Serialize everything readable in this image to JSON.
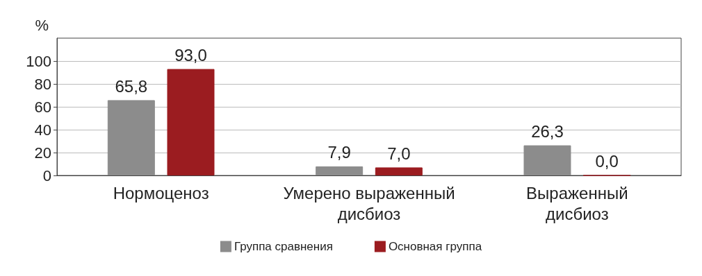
{
  "chart_data": {
    "type": "bar",
    "ylabel": "%",
    "categories": [
      "Нормоценоз",
      "Умерено выраженный дисбиоз",
      "Выраженный дисбиоз"
    ],
    "series": [
      {
        "name": "Группа сравнения",
        "color": "#8c8c8c",
        "values": [
          65.8,
          7.9,
          26.3
        ],
        "value_labels": [
          "65,8",
          "7,9",
          "26,3"
        ]
      },
      {
        "name": "Основная группа",
        "color": "#9b1c20",
        "values": [
          93.0,
          7.0,
          0.0
        ],
        "value_labels": [
          "93,0",
          "7,0",
          "0,0"
        ]
      }
    ],
    "ylim": [
      0,
      120
    ],
    "yticks": [
      0,
      20,
      40,
      60,
      80,
      100
    ],
    "grid": "y",
    "legend": "bottom"
  }
}
